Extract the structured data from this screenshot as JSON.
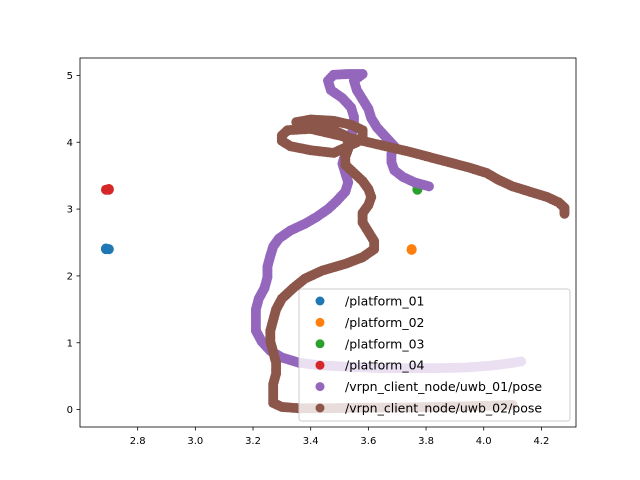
{
  "chart_data": {
    "type": "scatter",
    "title": "",
    "xlabel": "",
    "ylabel": "",
    "xlim": [
      2.6,
      4.32
    ],
    "ylim": [
      -0.26,
      5.26
    ],
    "x_ticks": [
      2.8,
      3.0,
      3.2,
      3.4,
      3.6,
      3.8,
      4.0,
      4.2
    ],
    "y_ticks": [
      0,
      1,
      2,
      3,
      4,
      5
    ],
    "x_tick_labels": [
      "2.8",
      "3.0",
      "3.2",
      "3.4",
      "3.6",
      "3.8",
      "4.0",
      "4.2"
    ],
    "y_tick_labels": [
      "0",
      "1",
      "2",
      "3",
      "4",
      "5"
    ],
    "grid": false,
    "legend_position": "lower-right",
    "series": [
      {
        "name": "/platform_01",
        "color": "#1f77b4",
        "points": [
          [
            2.69,
            2.4
          ],
          [
            2.69,
            2.41
          ],
          [
            2.7,
            2.4
          ]
        ]
      },
      {
        "name": "/platform_02",
        "color": "#ff7f0e",
        "points": [
          [
            3.75,
            2.39
          ],
          [
            3.75,
            2.4
          ]
        ]
      },
      {
        "name": "/platform_03",
        "color": "#2ca02c",
        "points": [
          [
            3.77,
            3.29
          ],
          [
            3.77,
            3.3
          ]
        ]
      },
      {
        "name": "/platform_04",
        "color": "#d62728",
        "points": [
          [
            2.7,
            3.29
          ],
          [
            2.7,
            3.3
          ],
          [
            2.69,
            3.29
          ]
        ]
      },
      {
        "name": "/vrpn_client_node/uwb_01/pose",
        "color": "#9467bd",
        "points": [
          [
            3.81,
            3.34
          ],
          [
            3.76,
            3.4
          ],
          [
            3.72,
            3.48
          ],
          [
            3.69,
            3.58
          ],
          [
            3.68,
            3.7
          ],
          [
            3.68,
            3.82
          ],
          [
            3.69,
            3.94
          ],
          [
            3.66,
            4.08
          ],
          [
            3.63,
            4.22
          ],
          [
            3.61,
            4.36
          ],
          [
            3.6,
            4.5
          ],
          [
            3.58,
            4.64
          ],
          [
            3.56,
            4.78
          ],
          [
            3.55,
            4.92
          ],
          [
            3.58,
            5.02
          ],
          [
            3.53,
            5.02
          ],
          [
            3.48,
            5.01
          ],
          [
            3.46,
            4.92
          ],
          [
            3.47,
            4.78
          ],
          [
            3.51,
            4.66
          ],
          [
            3.54,
            4.52
          ],
          [
            3.55,
            4.38
          ],
          [
            3.55,
            4.24
          ],
          [
            3.54,
            4.1
          ],
          [
            3.53,
            3.96
          ],
          [
            3.52,
            3.82
          ],
          [
            3.51,
            3.68
          ],
          [
            3.52,
            3.54
          ],
          [
            3.53,
            3.4
          ],
          [
            3.52,
            3.26
          ],
          [
            3.49,
            3.12
          ],
          [
            3.46,
            3.0
          ],
          [
            3.42,
            2.88
          ],
          [
            3.38,
            2.78
          ],
          [
            3.33,
            2.68
          ],
          [
            3.29,
            2.56
          ],
          [
            3.27,
            2.44
          ],
          [
            3.26,
            2.3
          ],
          [
            3.25,
            2.14
          ],
          [
            3.25,
            1.98
          ],
          [
            3.24,
            1.82
          ],
          [
            3.22,
            1.66
          ],
          [
            3.21,
            1.5
          ],
          [
            3.21,
            1.34
          ],
          [
            3.21,
            1.18
          ],
          [
            3.23,
            1.02
          ],
          [
            3.26,
            0.88
          ],
          [
            3.3,
            0.78
          ],
          [
            3.36,
            0.7
          ],
          [
            3.44,
            0.66
          ],
          [
            3.54,
            0.64
          ],
          [
            3.64,
            0.62
          ],
          [
            3.74,
            0.62
          ],
          [
            3.84,
            0.62
          ],
          [
            3.94,
            0.63
          ],
          [
            4.03,
            0.66
          ],
          [
            4.1,
            0.7
          ],
          [
            4.13,
            0.72
          ]
        ]
      },
      {
        "name": "/vrpn_client_node/uwb_02/pose",
        "color": "#8c564b",
        "points": [
          [
            4.28,
            2.93
          ],
          [
            4.28,
            3.02
          ],
          [
            4.26,
            3.1
          ],
          [
            4.22,
            3.18
          ],
          [
            4.16,
            3.26
          ],
          [
            4.1,
            3.34
          ],
          [
            4.05,
            3.44
          ],
          [
            4.01,
            3.54
          ],
          [
            3.95,
            3.62
          ],
          [
            3.88,
            3.7
          ],
          [
            3.81,
            3.78
          ],
          [
            3.74,
            3.86
          ],
          [
            3.66,
            3.94
          ],
          [
            3.58,
            4.02
          ],
          [
            3.5,
            4.1
          ],
          [
            3.42,
            4.18
          ],
          [
            3.36,
            4.24
          ],
          [
            3.35,
            4.3
          ],
          [
            3.4,
            4.34
          ],
          [
            3.48,
            4.32
          ],
          [
            3.54,
            4.26
          ],
          [
            3.58,
            4.18
          ],
          [
            3.58,
            4.08
          ],
          [
            3.56,
            4.0
          ],
          [
            3.52,
            3.92
          ],
          [
            3.48,
            3.84
          ],
          [
            3.4,
            3.88
          ],
          [
            3.33,
            3.94
          ],
          [
            3.3,
            4.02
          ],
          [
            3.3,
            4.1
          ],
          [
            3.32,
            4.18
          ],
          [
            3.4,
            4.2
          ],
          [
            3.48,
            4.18
          ],
          [
            3.52,
            4.1
          ],
          [
            3.53,
            4.0
          ],
          [
            3.53,
            3.9
          ],
          [
            3.52,
            3.78
          ],
          [
            3.52,
            3.66
          ],
          [
            3.55,
            3.54
          ],
          [
            3.58,
            3.42
          ],
          [
            3.6,
            3.3
          ],
          [
            3.61,
            3.18
          ],
          [
            3.6,
            3.06
          ],
          [
            3.58,
            2.94
          ],
          [
            3.58,
            2.8
          ],
          [
            3.6,
            2.66
          ],
          [
            3.62,
            2.52
          ],
          [
            3.62,
            2.4
          ],
          [
            3.58,
            2.28
          ],
          [
            3.52,
            2.18
          ],
          [
            3.44,
            2.08
          ],
          [
            3.38,
            1.96
          ],
          [
            3.34,
            1.82
          ],
          [
            3.3,
            1.66
          ],
          [
            3.28,
            1.5
          ],
          [
            3.27,
            1.34
          ],
          [
            3.26,
            1.18
          ],
          [
            3.26,
            1.02
          ],
          [
            3.27,
            0.86
          ],
          [
            3.28,
            0.7
          ],
          [
            3.28,
            0.54
          ],
          [
            3.27,
            0.38
          ],
          [
            3.27,
            0.22
          ],
          [
            3.27,
            0.1
          ],
          [
            3.3,
            0.04
          ],
          [
            3.36,
            0.02
          ],
          [
            3.46,
            0.02
          ],
          [
            3.58,
            0.03
          ],
          [
            3.7,
            0.03
          ],
          [
            3.82,
            0.04
          ],
          [
            3.94,
            0.05
          ],
          [
            4.04,
            0.06
          ],
          [
            4.1,
            0.07
          ]
        ]
      }
    ]
  }
}
